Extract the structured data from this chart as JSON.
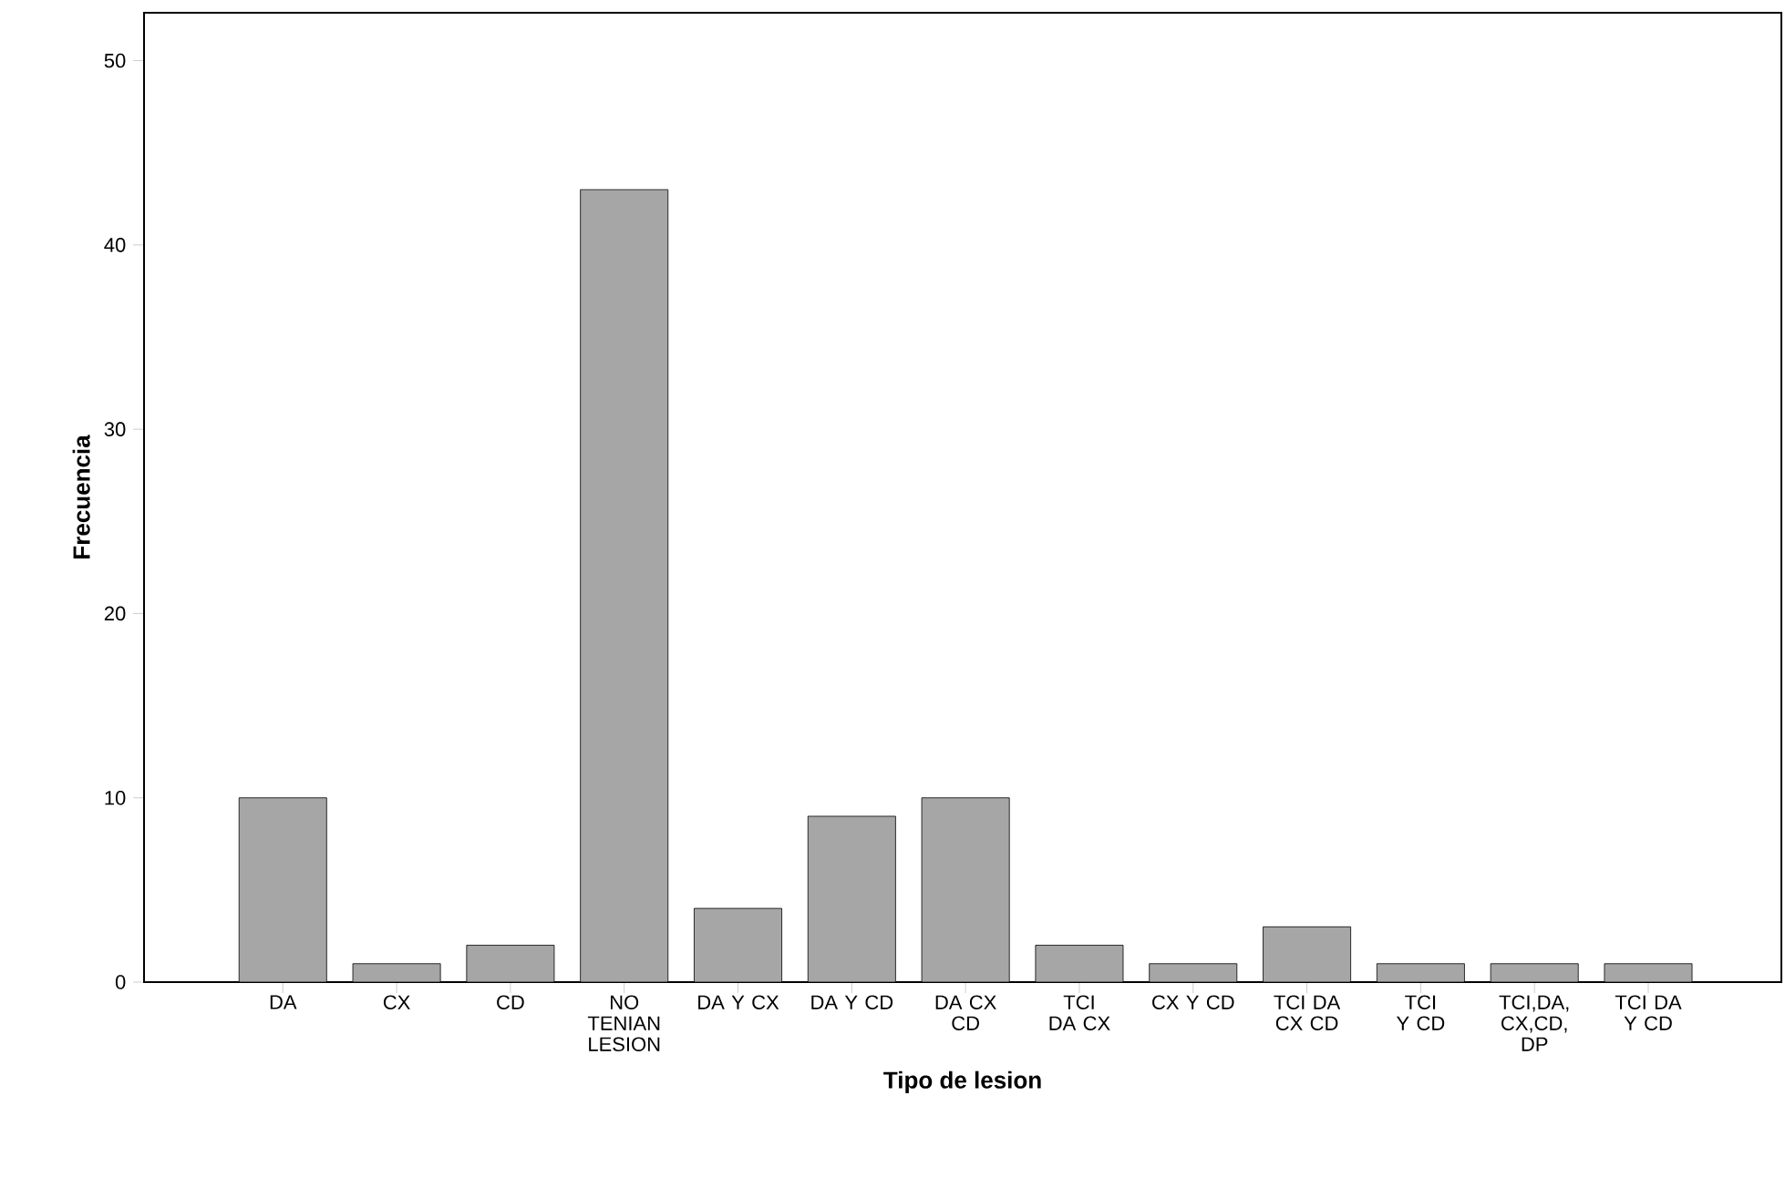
{
  "chart_data": {
    "type": "bar",
    "xlabel": "Tipo de lesion",
    "ylabel": "Frecuencia",
    "categories": [
      "DA",
      "CX",
      "CD",
      "NO TENIAN LESION",
      "DA Y CX",
      "DA Y CD",
      "DA CX CD",
      "TCI DA CX",
      "CX Y CD",
      "TCI DA CX CD",
      "TCI Y CD",
      "TCI,DA, CX,CD, DP",
      "TCI DA Y CD"
    ],
    "values": [
      10,
      1,
      2,
      43,
      4,
      9,
      10,
      2,
      1,
      3,
      1,
      1,
      1
    ],
    "color": "#a6a6a6",
    "ylim": [
      0,
      52.6
    ],
    "yticks": [
      0,
      10,
      20,
      30,
      40,
      50
    ],
    "grid": false
  }
}
